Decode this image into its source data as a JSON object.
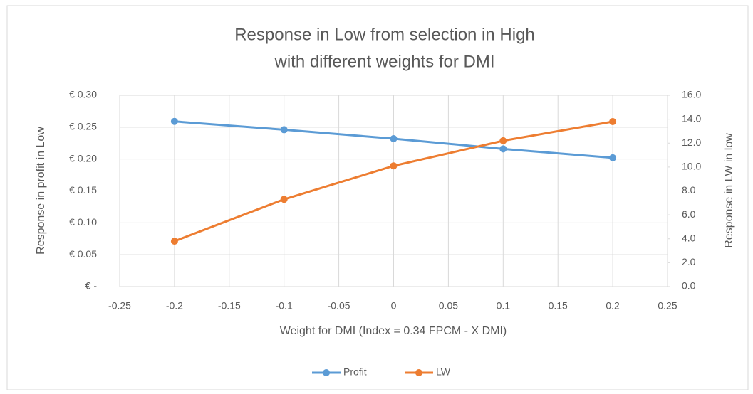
{
  "chart_data": {
    "type": "line",
    "title_lines": [
      "Response in Low from selection in High",
      "with different weights for DMI"
    ],
    "x_label": "Weight for DMI (Index = 0.34 FPCM - X DMI)",
    "y_label": "Response in profit in Low",
    "y2_label": "Response in LW in low",
    "x": [
      -0.2,
      -0.1,
      0,
      0.1,
      0.2
    ],
    "series": [
      {
        "name": "Profit",
        "color": "#5b9bd5",
        "values": [
          0.259,
          0.246,
          0.232,
          0.216,
          0.202
        ]
      },
      {
        "name": "LW",
        "color": "#ed7d31",
        "axis": "y2",
        "values": [
          3.8,
          7.3,
          10.1,
          12.2,
          13.8
        ]
      }
    ],
    "xlim": [
      -0.25,
      0.25
    ],
    "xticks": [
      -0.25,
      -0.2,
      -0.15,
      -0.1,
      -0.05,
      0,
      0.05,
      0.1,
      0.15,
      0.2,
      0.25
    ],
    "ylim": [
      0,
      0.3
    ],
    "yticks": [
      {
        "value": 0,
        "label": "€ -"
      },
      {
        "value": 0.05,
        "label": "€ 0.05"
      },
      {
        "value": 0.1,
        "label": "€ 0.10"
      },
      {
        "value": 0.15,
        "label": "€ 0.15"
      },
      {
        "value": 0.2,
        "label": "€ 0.20"
      },
      {
        "value": 0.25,
        "label": "€ 0.25"
      },
      {
        "value": 0.3,
        "label": "€ 0.30"
      }
    ],
    "y2lim": [
      0,
      16
    ],
    "y2ticks": [
      {
        "value": 0,
        "label": "0.0"
      },
      {
        "value": 2,
        "label": "2.0"
      },
      {
        "value": 4,
        "label": "4.0"
      },
      {
        "value": 6,
        "label": "6.0"
      },
      {
        "value": 8,
        "label": "8.0"
      },
      {
        "value": 10,
        "label": "10.0"
      },
      {
        "value": 12,
        "label": "12.0"
      },
      {
        "value": 14,
        "label": "14.0"
      },
      {
        "value": 16,
        "label": "16.0"
      }
    ],
    "grid": true,
    "legend": "bottom"
  }
}
